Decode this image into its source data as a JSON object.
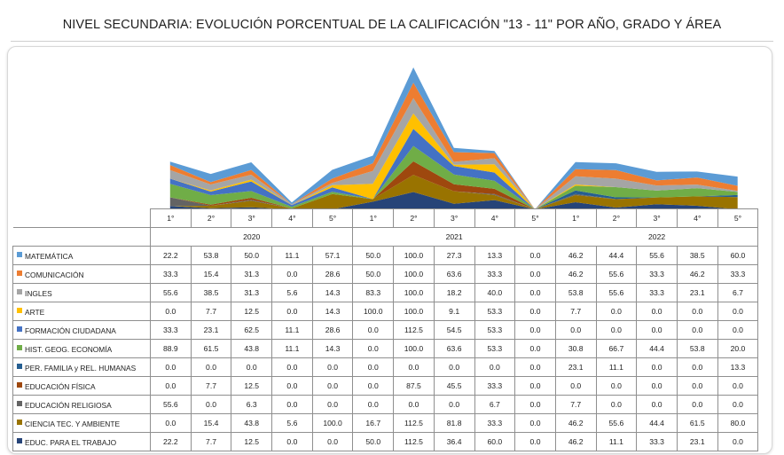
{
  "chart_data": {
    "type": "area",
    "stacked": true,
    "title": "NIVEL SECUNDARIA: EVOLUCIÓN PORCENTUAL DE LA CALIFICACIÓN \"13 - 11\" POR AÑO, GRADO Y ÁREA",
    "years": [
      {
        "label": "2020",
        "span": 5
      },
      {
        "label": "2021",
        "span": 5
      },
      {
        "label": "2022",
        "span": 5
      }
    ],
    "grades": [
      "1°",
      "2°",
      "3°",
      "4°",
      "5°",
      "1°",
      "2°",
      "3°",
      "4°",
      "5°",
      "1°",
      "2°",
      "3°",
      "4°",
      "5°"
    ],
    "series": [
      {
        "name": "MATEMÁTICA",
        "color": "#5b9bd5",
        "values": [
          22.2,
          53.8,
          50.0,
          11.1,
          57.1,
          50.0,
          100.0,
          27.3,
          13.3,
          0.0,
          46.2,
          44.4,
          55.6,
          38.5,
          60.0
        ]
      },
      {
        "name": "COMUNICACIÓN",
        "color": "#ed7d31",
        "values": [
          33.3,
          15.4,
          31.3,
          0.0,
          28.6,
          50.0,
          100.0,
          63.6,
          33.3,
          0.0,
          46.2,
          55.6,
          33.3,
          46.2,
          33.3
        ]
      },
      {
        "name": "INGLES",
        "color": "#a5a5a5",
        "values": [
          55.6,
          38.5,
          31.3,
          5.6,
          14.3,
          83.3,
          100.0,
          18.2,
          40.0,
          0.0,
          53.8,
          55.6,
          33.3,
          23.1,
          6.7
        ]
      },
      {
        "name": "ARTE",
        "color": "#ffc000",
        "values": [
          0.0,
          7.7,
          12.5,
          0.0,
          14.3,
          100.0,
          100.0,
          9.1,
          53.3,
          0.0,
          7.7,
          0.0,
          0.0,
          0.0,
          0.0
        ]
      },
      {
        "name": "FORMACIÓN CIUDADANA",
        "color": "#4472c4",
        "values": [
          33.3,
          23.1,
          62.5,
          11.1,
          28.6,
          0.0,
          112.5,
          54.5,
          53.3,
          0.0,
          0.0,
          0.0,
          0.0,
          0.0,
          0.0
        ]
      },
      {
        "name": "HIST. GEOG. ECONOMÍA",
        "color": "#70ad47",
        "values": [
          88.9,
          61.5,
          43.8,
          11.1,
          14.3,
          0.0,
          100.0,
          63.6,
          53.3,
          0.0,
          30.8,
          66.7,
          44.4,
          53.8,
          20.0
        ]
      },
      {
        "name": "PER. FAMILIA y REL. HUMANAS",
        "color": "#255e91",
        "values": [
          0.0,
          0.0,
          0.0,
          0.0,
          0.0,
          0.0,
          0.0,
          0.0,
          0.0,
          0.0,
          23.1,
          11.1,
          0.0,
          0.0,
          13.3
        ]
      },
      {
        "name": "EDUCACIÓN FÍSICA",
        "color": "#9e480e",
        "values": [
          0.0,
          7.7,
          12.5,
          0.0,
          0.0,
          0.0,
          87.5,
          45.5,
          33.3,
          0.0,
          0.0,
          0.0,
          0.0,
          0.0,
          0.0
        ]
      },
      {
        "name": "EDUCACIÓN RELIGIOSA",
        "color": "#636363",
        "values": [
          55.6,
          0.0,
          6.3,
          0.0,
          0.0,
          0.0,
          0.0,
          0.0,
          6.7,
          0.0,
          7.7,
          0.0,
          0.0,
          0.0,
          0.0
        ]
      },
      {
        "name": "CIENCIA TEC. Y AMBIENTE",
        "color": "#997300",
        "values": [
          0.0,
          15.4,
          43.8,
          5.6,
          100.0,
          16.7,
          112.5,
          81.8,
          33.3,
          0.0,
          46.2,
          55.6,
          44.4,
          61.5,
          80.0
        ]
      },
      {
        "name": "EDUC. PARA EL TRABAJO",
        "color": "#264478",
        "values": [
          22.2,
          7.7,
          12.5,
          0.0,
          0.0,
          50.0,
          112.5,
          36.4,
          60.0,
          0.0,
          46.2,
          11.1,
          33.3,
          23.1,
          0.0
        ]
      }
    ]
  }
}
